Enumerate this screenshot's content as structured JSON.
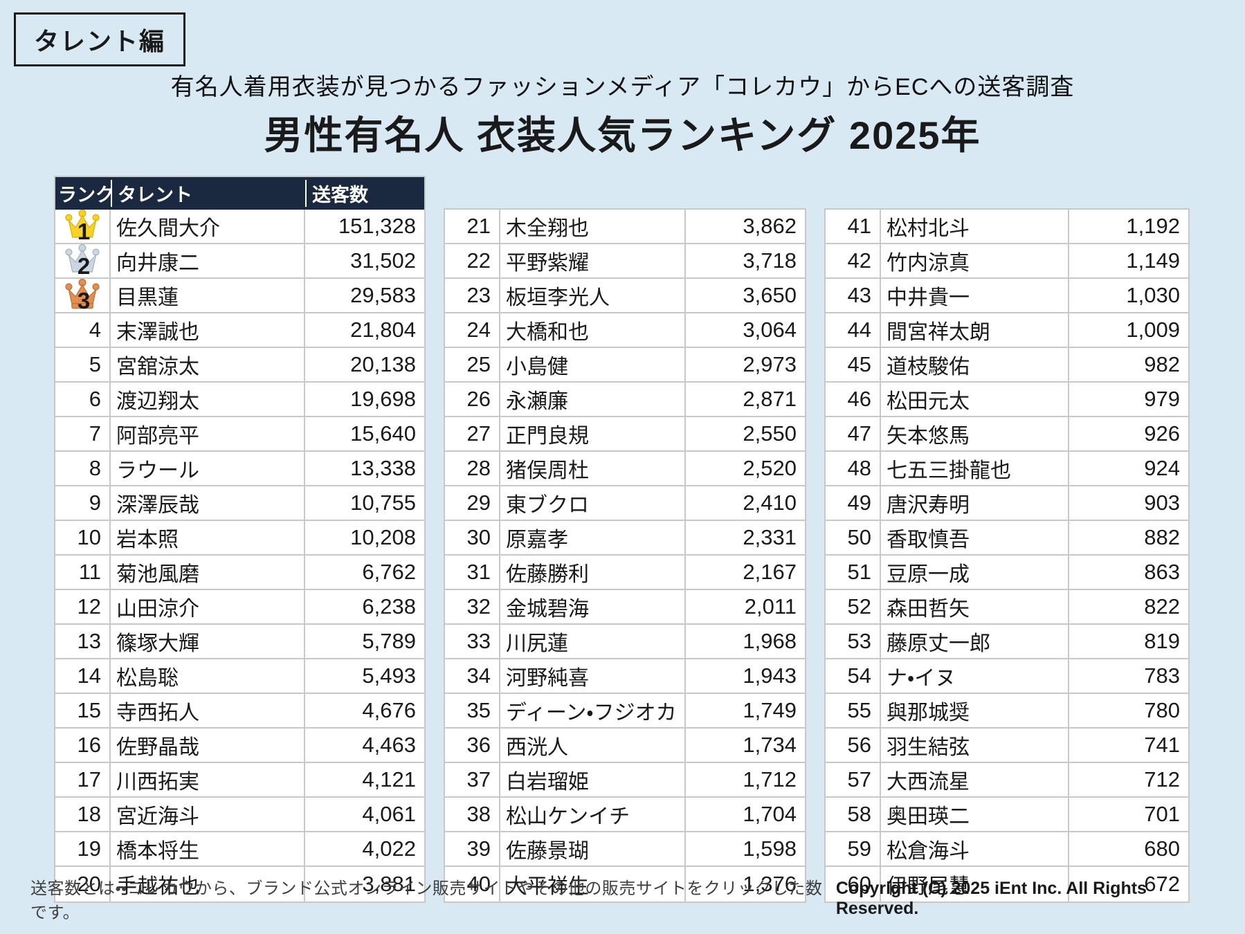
{
  "page": {
    "badge": "タレント編",
    "subtitle": "有名人着用衣装が見つかるファッションメディア「コレカウ」からECへの送客調査",
    "title": "男性有名人 衣装人気ランキング 2025年",
    "footer_note": "送客数とは・・コレカウから、ブランド公式オンライン販売サイトやその他の販売サイトをクリックした数です。",
    "copyright": "Copyright (C) 2025 iEnt Inc. All Rights Reserved."
  },
  "table_headers": {
    "rank": "ランク",
    "talent": "タレント",
    "count": "送客数"
  },
  "icons": {
    "rank1": "gold-crown-icon",
    "rank2": "silver-crown-icon",
    "rank3": "bronze-crown-icon"
  },
  "colors": {
    "background": "#d9e9f4",
    "header_navy": "#1b2940",
    "grid_line": "#c8c8c8",
    "gold": "#f5d327",
    "gold_stroke": "#dcb30e",
    "silver": "#ccd6e2",
    "silver_stroke": "#a9b5c4",
    "bronze": "#e29050",
    "bronze_stroke": "#c4703a"
  },
  "chart_data": {
    "type": "table",
    "title": "男性有名人 衣装人気ランキング 2025年",
    "subtitle": "有名人着用衣装が見つかるファッションメディア「コレカウ」からECへの送客調査",
    "columns": [
      "ランク",
      "タレント",
      "送客数"
    ],
    "layout": "three column blocks: ranks 1-20, 21-40, 41-60; header row only on first block; ranks 1-3 marked with gold/silver/bronze crown icons",
    "rows": [
      {
        "rank": 1,
        "talent": "佐久間大介",
        "count": "151,328",
        "medal": "gold"
      },
      {
        "rank": 2,
        "talent": "向井康二",
        "count": "31,502",
        "medal": "silver"
      },
      {
        "rank": 3,
        "talent": "目黒蓮",
        "count": "29,583",
        "medal": "bronze"
      },
      {
        "rank": 4,
        "talent": "末澤誠也",
        "count": "21,804"
      },
      {
        "rank": 5,
        "talent": "宮舘涼太",
        "count": "20,138"
      },
      {
        "rank": 6,
        "talent": "渡辺翔太",
        "count": "19,698"
      },
      {
        "rank": 7,
        "talent": "阿部亮平",
        "count": "15,640"
      },
      {
        "rank": 8,
        "talent": "ラウール",
        "count": "13,338"
      },
      {
        "rank": 9,
        "talent": "深澤辰哉",
        "count": "10,755"
      },
      {
        "rank": 10,
        "talent": "岩本照",
        "count": "10,208"
      },
      {
        "rank": 11,
        "talent": "菊池風磨",
        "count": "6,762"
      },
      {
        "rank": 12,
        "talent": "山田涼介",
        "count": "6,238"
      },
      {
        "rank": 13,
        "talent": "篠塚大輝",
        "count": "5,789"
      },
      {
        "rank": 14,
        "talent": "松島聡",
        "count": "5,493"
      },
      {
        "rank": 15,
        "talent": "寺西拓人",
        "count": "4,676"
      },
      {
        "rank": 16,
        "talent": "佐野晶哉",
        "count": "4,463"
      },
      {
        "rank": 17,
        "talent": "川西拓実",
        "count": "4,121"
      },
      {
        "rank": 18,
        "talent": "宮近海斗",
        "count": "4,061"
      },
      {
        "rank": 19,
        "talent": "橋本将生",
        "count": "4,022"
      },
      {
        "rank": 20,
        "talent": "手越祐也",
        "count": "3,881"
      },
      {
        "rank": 21,
        "talent": "木全翔也",
        "count": "3,862"
      },
      {
        "rank": 22,
        "talent": "平野紫耀",
        "count": "3,718"
      },
      {
        "rank": 23,
        "talent": "板垣李光人",
        "count": "3,650"
      },
      {
        "rank": 24,
        "talent": "大橋和也",
        "count": "3,064"
      },
      {
        "rank": 25,
        "talent": "小島健",
        "count": "2,973"
      },
      {
        "rank": 26,
        "talent": "永瀬廉",
        "count": "2,871"
      },
      {
        "rank": 27,
        "talent": "正門良規",
        "count": "2,550"
      },
      {
        "rank": 28,
        "talent": "猪俣周杜",
        "count": "2,520"
      },
      {
        "rank": 29,
        "talent": "東ブクロ",
        "count": "2,410"
      },
      {
        "rank": 30,
        "talent": "原嘉孝",
        "count": "2,331"
      },
      {
        "rank": 31,
        "talent": "佐藤勝利",
        "count": "2,167"
      },
      {
        "rank": 32,
        "talent": "金城碧海",
        "count": "2,011"
      },
      {
        "rank": 33,
        "talent": "川尻蓮",
        "count": "1,968"
      },
      {
        "rank": 34,
        "talent": "河野純喜",
        "count": "1,943"
      },
      {
        "rank": 35,
        "talent": "ディーン・フジオカ",
        "count": "1,749"
      },
      {
        "rank": 36,
        "talent": "西洸人",
        "count": "1,734"
      },
      {
        "rank": 37,
        "talent": "白岩瑠姫",
        "count": "1,712"
      },
      {
        "rank": 38,
        "talent": "松山ケンイチ",
        "count": "1,704"
      },
      {
        "rank": 39,
        "talent": "佐藤景瑚",
        "count": "1,598"
      },
      {
        "rank": 40,
        "talent": "大平祥生",
        "count": "1,376"
      },
      {
        "rank": 41,
        "talent": "松村北斗",
        "count": "1,192"
      },
      {
        "rank": 42,
        "talent": "竹内涼真",
        "count": "1,149"
      },
      {
        "rank": 43,
        "talent": "中井貴一",
        "count": "1,030"
      },
      {
        "rank": 44,
        "talent": "間宮祥太朗",
        "count": "1,009"
      },
      {
        "rank": 45,
        "talent": "道枝駿佑",
        "count": "982"
      },
      {
        "rank": 46,
        "talent": "松田元太",
        "count": "979"
      },
      {
        "rank": 47,
        "talent": "矢本悠馬",
        "count": "926"
      },
      {
        "rank": 48,
        "talent": "七五三掛龍也",
        "count": "924"
      },
      {
        "rank": 49,
        "talent": "唐沢寿明",
        "count": "903"
      },
      {
        "rank": 50,
        "talent": "香取慎吾",
        "count": "882"
      },
      {
        "rank": 51,
        "talent": "豆原一成",
        "count": "863"
      },
      {
        "rank": 52,
        "talent": "森田哲矢",
        "count": "822"
      },
      {
        "rank": 53,
        "talent": "藤原丈一郎",
        "count": "819"
      },
      {
        "rank": 54,
        "talent": "ナ・イヌ",
        "count": "783"
      },
      {
        "rank": 55,
        "talent": "與那城奨",
        "count": "780"
      },
      {
        "rank": 56,
        "talent": "羽生結弦",
        "count": "741"
      },
      {
        "rank": 57,
        "talent": "大西流星",
        "count": "712"
      },
      {
        "rank": 58,
        "talent": "奥田瑛二",
        "count": "701"
      },
      {
        "rank": 59,
        "talent": "松倉海斗",
        "count": "680"
      },
      {
        "rank": 60,
        "talent": "伊野尾慧",
        "count": "672"
      }
    ]
  }
}
